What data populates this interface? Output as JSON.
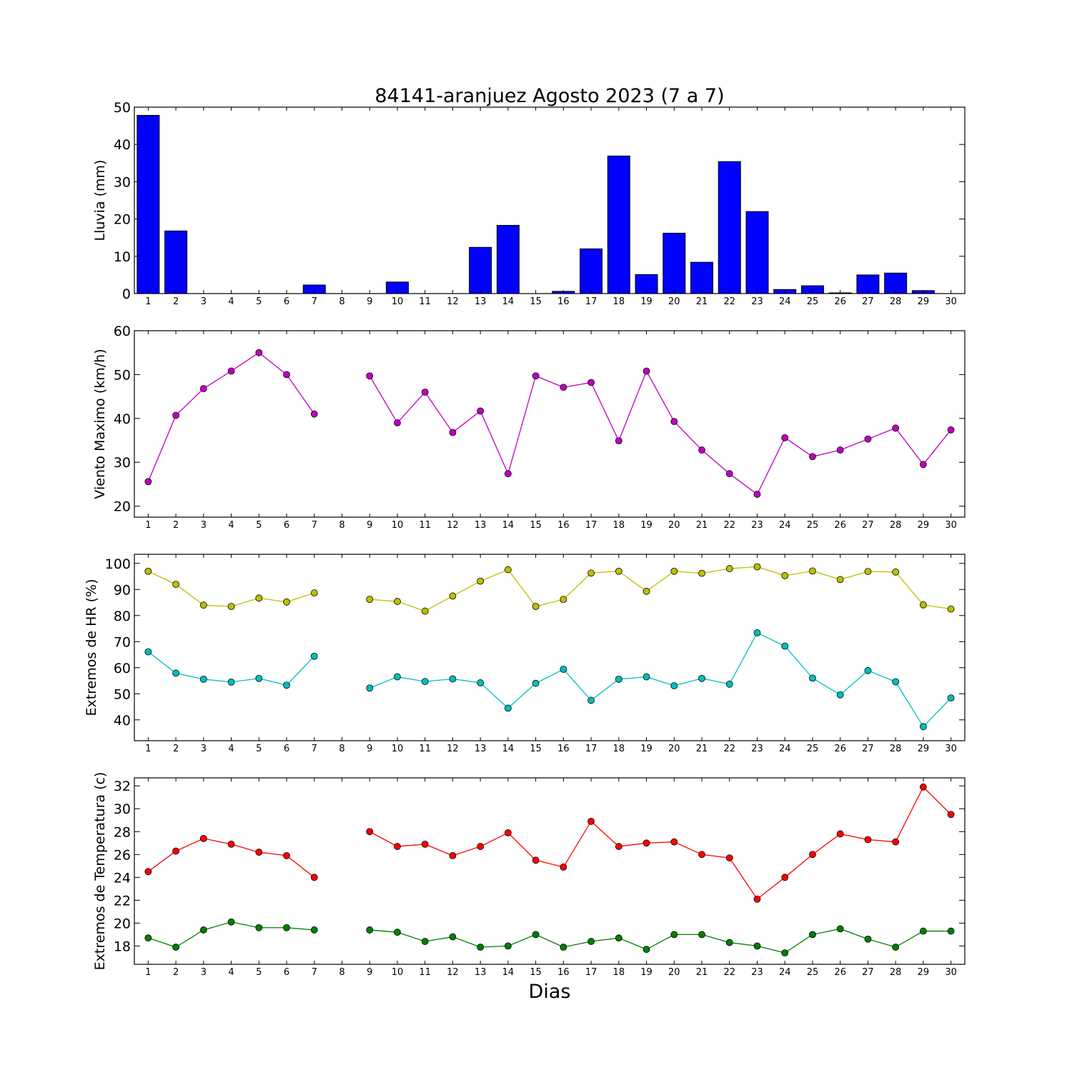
{
  "title": "84141-aranjuez Agosto 2023  (7 a 7)",
  "xlabel": "Dias",
  "chart_data": [
    {
      "type": "bar",
      "ylabel": "Lluvia (mm)",
      "ylim": [
        0,
        50
      ],
      "yticks": [
        0,
        10,
        20,
        30,
        40,
        50
      ],
      "x": [
        1,
        2,
        3,
        4,
        5,
        6,
        7,
        8,
        9,
        10,
        11,
        12,
        13,
        14,
        15,
        16,
        17,
        18,
        19,
        20,
        21,
        22,
        23,
        24,
        25,
        26,
        27,
        28,
        29,
        30
      ],
      "xlim": [
        0.5,
        30.5
      ],
      "series": [
        {
          "color": "#0000ff",
          "values": [
            47.8,
            16.8,
            0,
            0,
            0,
            0,
            2.3,
            0,
            0,
            3.1,
            0,
            0,
            12.4,
            18.3,
            0,
            0.6,
            12.0,
            36.9,
            5.1,
            16.2,
            8.4,
            35.4,
            22.0,
            1.1,
            2.1,
            0.2,
            5.0,
            5.5,
            0.8,
            0
          ]
        }
      ]
    },
    {
      "type": "line",
      "ylabel": "Viento Maximo (km/h)",
      "ylim": [
        17.5,
        60
      ],
      "yticks": [
        20,
        30,
        40,
        50,
        60
      ],
      "x": [
        1,
        2,
        3,
        4,
        5,
        6,
        7,
        8,
        9,
        10,
        11,
        12,
        13,
        14,
        15,
        16,
        17,
        18,
        19,
        20,
        21,
        22,
        23,
        24,
        25,
        26,
        27,
        28,
        29,
        30
      ],
      "xlim": [
        0.5,
        30.5
      ],
      "series": [
        {
          "color": "#bf00bf",
          "values": [
            25.6,
            40.7,
            46.8,
            50.8,
            55.0,
            50.0,
            41.0,
            null,
            49.7,
            39.0,
            46.0,
            36.8,
            41.7,
            27.4,
            49.7,
            47.1,
            48.2,
            34.9,
            50.8,
            39.3,
            32.8,
            27.4,
            22.7,
            35.6,
            31.3,
            32.8,
            35.3,
            37.8,
            29.5,
            37.4
          ]
        }
      ]
    },
    {
      "type": "line",
      "ylabel": "Extremos de HR (%)",
      "ylim": [
        32,
        103.5
      ],
      "yticks": [
        40,
        50,
        60,
        70,
        80,
        90,
        100
      ],
      "x": [
        1,
        2,
        3,
        4,
        5,
        6,
        7,
        8,
        9,
        10,
        11,
        12,
        13,
        14,
        15,
        16,
        17,
        18,
        19,
        20,
        21,
        22,
        23,
        24,
        25,
        26,
        27,
        28,
        29,
        30
      ],
      "xlim": [
        0.5,
        30.5
      ],
      "series": [
        {
          "color": "#bfbf00",
          "values": [
            97,
            92,
            84,
            83.5,
            86.7,
            85.2,
            88.7,
            null,
            86.2,
            85.4,
            81.7,
            87.5,
            93.2,
            97.6,
            83.5,
            86.2,
            96.3,
            97,
            89.3,
            97,
            96.2,
            98,
            98.7,
            95.3,
            97.1,
            93.8,
            96.9,
            96.7,
            84.1,
            82.5
          ]
        },
        {
          "color": "#00bfbf",
          "values": [
            66.1,
            57.9,
            55.6,
            54.5,
            55.9,
            53.3,
            64.4,
            null,
            52.2,
            56.5,
            54.7,
            55.7,
            54.2,
            44.5,
            54.0,
            59.4,
            47.5,
            55.6,
            56.5,
            53.1,
            55.9,
            53.7,
            73.4,
            68.3,
            56.0,
            49.6,
            58.9,
            54.6,
            37.4,
            48.4
          ]
        }
      ]
    },
    {
      "type": "line",
      "ylabel": "Extremos de Temperatura (c)",
      "ylim": [
        16.4,
        32.7
      ],
      "yticks": [
        18,
        20,
        22,
        24,
        26,
        28,
        30,
        32
      ],
      "x": [
        1,
        2,
        3,
        4,
        5,
        6,
        7,
        8,
        9,
        10,
        11,
        12,
        13,
        14,
        15,
        16,
        17,
        18,
        19,
        20,
        21,
        22,
        23,
        24,
        25,
        26,
        27,
        28,
        29,
        30
      ],
      "xlim": [
        0.5,
        30.5
      ],
      "series": [
        {
          "color": "#ff0000",
          "values": [
            24.5,
            26.3,
            27.4,
            26.9,
            26.2,
            25.9,
            24.0,
            null,
            28.0,
            26.7,
            26.9,
            25.9,
            26.7,
            27.9,
            25.5,
            24.9,
            28.9,
            26.7,
            27.0,
            27.1,
            26.0,
            25.7,
            22.1,
            24.0,
            26.0,
            27.8,
            27.3,
            27.1,
            31.9,
            29.5
          ]
        },
        {
          "color": "#008000",
          "values": [
            18.7,
            17.9,
            19.4,
            20.1,
            19.6,
            19.6,
            19.4,
            null,
            19.4,
            19.2,
            18.4,
            18.8,
            17.9,
            18.0,
            19.0,
            17.9,
            18.4,
            18.7,
            17.7,
            19.0,
            19.0,
            18.3,
            18.0,
            17.4,
            19.0,
            19.5,
            18.6,
            17.9,
            19.3,
            19.3
          ]
        }
      ]
    }
  ]
}
